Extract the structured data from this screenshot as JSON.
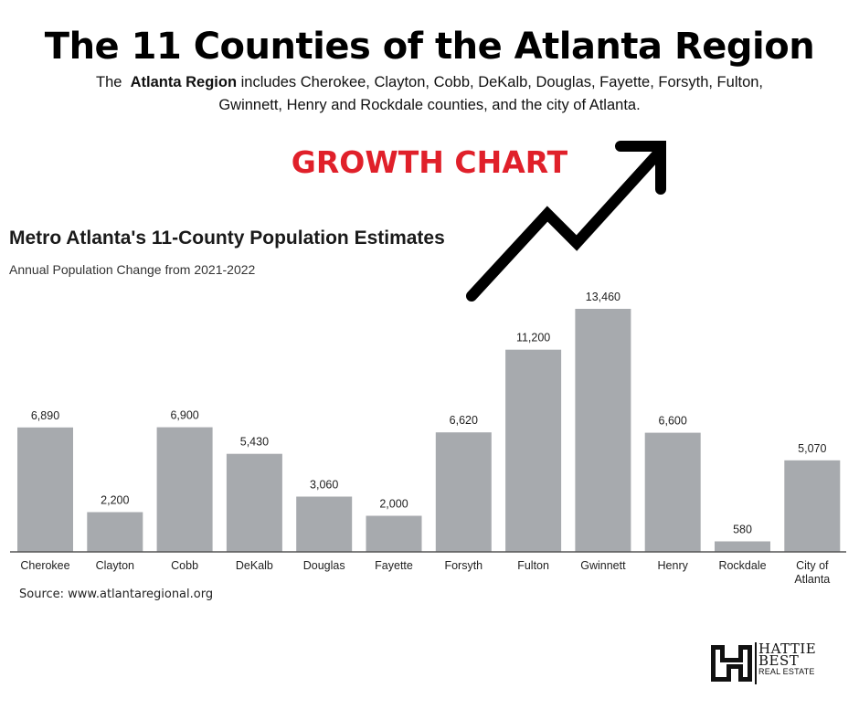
{
  "header": {
    "title": "The 11 Counties of the Atlanta Region",
    "intro_prefix": "The ",
    "intro_bold": "Atlanta Region",
    "intro_line1_rest": " includes Cherokee, Clayton, Cobb, DeKalb, Douglas, Fayette, Forsyth, Fulton,",
    "intro_line2": "Gwinnett, Henry and Rockdale counties, and the city of Atlanta.",
    "growth_label": "GROWTH CHART"
  },
  "colors": {
    "bar": "#a7aaae",
    "axis": "#555555",
    "accent_red": "#e0202a",
    "arrow": "#000000"
  },
  "icons": {
    "arrow": "trend-up-arrow-icon",
    "logo": "hattie-best-logo-icon"
  },
  "chart_data": {
    "type": "bar",
    "title": "Metro Atlanta's 11-County Population Estimates",
    "subtitle": "Annual Population Change from 2021-2022",
    "xlabel": "",
    "ylabel": "",
    "ylim": [
      0,
      13460
    ],
    "grid": false,
    "categories": [
      "Cherokee",
      "Clayton",
      "Cobb",
      "DeKalb",
      "Douglas",
      "Fayette",
      "Forsyth",
      "Fulton",
      "Gwinnett",
      "Henry",
      "Rockdale",
      "City of Atlanta"
    ],
    "category_lines": [
      [
        "Cherokee"
      ],
      [
        "Clayton"
      ],
      [
        "Cobb"
      ],
      [
        "DeKalb"
      ],
      [
        "Douglas"
      ],
      [
        "Fayette"
      ],
      [
        "Forsyth"
      ],
      [
        "Fulton"
      ],
      [
        "Gwinnett"
      ],
      [
        "Henry"
      ],
      [
        "Rockdale"
      ],
      [
        "City of",
        "Atlanta"
      ]
    ],
    "values": [
      6890,
      2200,
      6900,
      5430,
      3060,
      2000,
      6620,
      11200,
      13460,
      6600,
      580,
      5070
    ],
    "data_labels": [
      "6,890",
      "2,200",
      "6,900",
      "5,430",
      "3,060",
      "2,000",
      "6,620",
      "11,200",
      "13,460",
      "6,600",
      "580",
      "5,070"
    ]
  },
  "footer": {
    "source": "Source: www.atlantaregional.org",
    "logo_line1": "HATTIE",
    "logo_line2": "BEST",
    "logo_line3": "REAL ESTATE"
  }
}
